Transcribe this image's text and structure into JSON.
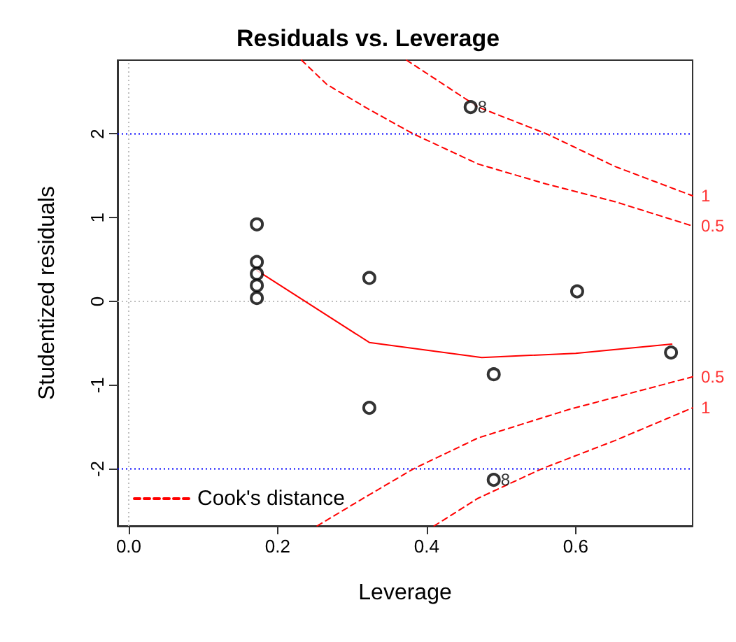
{
  "chart_data": {
    "type": "scatter",
    "title": "Residuals vs. Leverage",
    "xlabel": "Leverage",
    "ylabel": "Studentized residuals",
    "xlim": [
      -0.015,
      0.757
    ],
    "ylim": [
      -2.68,
      2.88
    ],
    "xticks": [
      {
        "value": 0,
        "label": "0.0"
      },
      0.2,
      0.4,
      0.6
    ],
    "yticks": [
      -2,
      -1,
      0,
      1,
      2
    ],
    "grid": false,
    "legend": "bottom left",
    "marker": "circle",
    "series": [
      {
        "color": "#000000",
        "x": [
          0.172,
          0.172,
          0.172,
          0.172,
          0.172,
          0.323,
          0.323,
          0.459,
          0.602,
          0.49,
          0.728,
          0.49
        ],
        "values": [
          0.92,
          0.47,
          0.33,
          0.19,
          0.04,
          0.28,
          -1.27,
          2.32,
          0.12,
          -0.87,
          -0.61,
          -2.13
        ]
      },
      {
        "type": "line",
        "color": "#ff0000",
        "marker": "none",
        "line_style": "solid",
        "x": [
          0.172,
          0.323,
          0.474,
          0.6,
          0.729
        ],
        "values": [
          0.37,
          -0.49,
          -0.67,
          -0.62,
          -0.51
        ]
      },
      {
        "type": "line",
        "name": "Cook's distance",
        "color": "#ff0000",
        "marker": "none",
        "line_style": "dashed",
        "x": [
          0.373,
          0.469,
          0.561,
          0.653,
          0.757
        ],
        "values": [
          2.88,
          2.32,
          2.0,
          1.61,
          1.26
        ]
      },
      {
        "type": "line",
        "color": "#ff0000",
        "marker": "none",
        "line_style": "dashed",
        "x": [
          0.232,
          0.266,
          0.321,
          0.382,
          0.469,
          0.561,
          0.653,
          0.757
        ],
        "values": [
          2.88,
          2.59,
          2.3,
          2.0,
          1.64,
          1.4,
          1.19,
          0.9
        ]
      },
      {
        "type": "line",
        "color": "#ff0000",
        "marker": "none",
        "line_style": "dashed",
        "x": [
          0.253,
          0.315,
          0.382,
          0.469,
          0.591,
          0.757
        ],
        "values": [
          -2.68,
          -2.35,
          -2.0,
          -1.63,
          -1.29,
          -0.9
        ]
      },
      {
        "type": "line",
        "color": "#ff0000",
        "marker": "none",
        "line_style": "dashed",
        "x": [
          0.41,
          0.469,
          0.554,
          0.653,
          0.757
        ],
        "values": [
          -2.68,
          -2.35,
          -2.0,
          -1.66,
          -1.27
        ]
      }
    ],
    "ref_lines": [
      {
        "axis": "y",
        "value": 2,
        "color": "#0000ff",
        "line_style": "dotted"
      },
      {
        "axis": "y",
        "value": -2,
        "color": "#0000ff",
        "line_style": "dotted"
      },
      {
        "axis": "y",
        "value": 0,
        "color": "#bebebe",
        "line_style": "dotted"
      },
      {
        "axis": "x",
        "value": 0,
        "color": "#bebebe",
        "line_style": "dotted"
      }
    ],
    "annotations": [
      {
        "text": "8",
        "x": 0.459,
        "y": 2.32
      },
      {
        "text": "8",
        "x": 0.49,
        "y": -2.13
      },
      {
        "text": "1",
        "x": 0.757,
        "y": 1.26
      },
      {
        "text": "0.5",
        "x": 0.757,
        "y": 0.9
      },
      {
        "text": "0.5",
        "x": 0.757,
        "y": -0.9
      },
      {
        "text": "1",
        "x": 0.757,
        "y": -1.27
      }
    ]
  }
}
